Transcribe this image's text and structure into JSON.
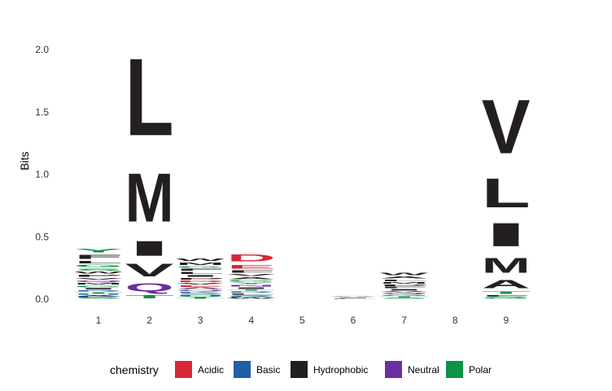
{
  "chart_data": {
    "type": "sequence-logo",
    "ylabel": "Bits",
    "ylim": [
      0,
      2.2
    ],
    "yticks": [
      "0.0",
      "0.5",
      "1.0",
      "1.5",
      "2.0"
    ],
    "positions": [
      "1",
      "2",
      "3",
      "4",
      "5",
      "6",
      "7",
      "8",
      "9"
    ],
    "legend": {
      "title": "chemistry",
      "placement": "bottom",
      "items": [
        {
          "label": "Acidic",
          "color": "#d62839"
        },
        {
          "label": "Basic",
          "color": "#1f5fa5"
        },
        {
          "label": "Hydrophobic",
          "color": "#231f20"
        },
        {
          "label": "Neutral",
          "color": "#6a2fa0"
        },
        {
          "label": "Polar",
          "color": "#0f9147"
        }
      ]
    },
    "color_map": {
      "Acidic": "#d62839",
      "Basic": "#1f5fa5",
      "Hydrophobic": "#231f20",
      "Neutral": "#6a2fa0",
      "Polar": "#0f9147"
    },
    "stacks": [
      {
        "position": "1",
        "letters": [
          {
            "aa": "S",
            "bits": 0.01,
            "chem": "Polar"
          },
          {
            "aa": "K",
            "bits": 0.01,
            "chem": "Basic"
          },
          {
            "aa": "A",
            "bits": 0.012,
            "chem": "Hydrophobic"
          },
          {
            "aa": "H",
            "bits": 0.012,
            "chem": "Basic"
          },
          {
            "aa": "T",
            "bits": 0.015,
            "chem": "Polar"
          },
          {
            "aa": "R",
            "bits": 0.015,
            "chem": "Basic"
          },
          {
            "aa": "I",
            "bits": 0.018,
            "chem": "Hydrophobic"
          },
          {
            "aa": "G",
            "bits": 0.02,
            "chem": "Polar"
          },
          {
            "aa": "M",
            "bits": 0.02,
            "chem": "Hydrophobic"
          },
          {
            "aa": "Q",
            "bits": 0.02,
            "chem": "Neutral"
          },
          {
            "aa": "V",
            "bits": 0.022,
            "chem": "Hydrophobic"
          },
          {
            "aa": "P",
            "bits": 0.025,
            "chem": "Hydrophobic"
          },
          {
            "aa": "W",
            "bits": 0.025,
            "chem": "Hydrophobic"
          },
          {
            "aa": "S",
            "bits": 0.028,
            "chem": "Polar"
          },
          {
            "aa": "G",
            "bits": 0.03,
            "chem": "Polar"
          },
          {
            "aa": "L",
            "bits": 0.03,
            "chem": "Hydrophobic"
          },
          {
            "aa": "F",
            "bits": 0.055,
            "chem": "Hydrophobic"
          },
          {
            "aa": "Y",
            "bits": 0.045,
            "chem": "Polar"
          }
        ]
      },
      {
        "position": "2",
        "letters": [
          {
            "aa": "T",
            "bits": 0.04,
            "chem": "Polar"
          },
          {
            "aa": "Q",
            "bits": 0.11,
            "chem": "Neutral"
          },
          {
            "aa": "V",
            "bits": 0.16,
            "chem": "Hydrophobic"
          },
          {
            "aa": "I",
            "bits": 0.19,
            "chem": "Hydrophobic"
          },
          {
            "aa": "M",
            "bits": 0.62,
            "chem": "Hydrophobic"
          },
          {
            "aa": "L",
            "bits": 0.99,
            "chem": "Hydrophobic"
          }
        ]
      },
      {
        "position": "3",
        "letters": [
          {
            "aa": "T",
            "bits": 0.01,
            "chem": "Polar"
          },
          {
            "aa": "Y",
            "bits": 0.01,
            "chem": "Polar"
          },
          {
            "aa": "H",
            "bits": 0.012,
            "chem": "Basic"
          },
          {
            "aa": "S",
            "bits": 0.015,
            "chem": "Polar"
          },
          {
            "aa": "K",
            "bits": 0.015,
            "chem": "Basic"
          },
          {
            "aa": "Q",
            "bits": 0.015,
            "chem": "Neutral"
          },
          {
            "aa": "A",
            "bits": 0.018,
            "chem": "Hydrophobic"
          },
          {
            "aa": "E",
            "bits": 0.018,
            "chem": "Acidic"
          },
          {
            "aa": "V",
            "bits": 0.02,
            "chem": "Hydrophobic"
          },
          {
            "aa": "D",
            "bits": 0.02,
            "chem": "Acidic"
          },
          {
            "aa": "P",
            "bits": 0.022,
            "chem": "Hydrophobic"
          },
          {
            "aa": "I",
            "bits": 0.022,
            "chem": "Hydrophobic"
          },
          {
            "aa": "L",
            "bits": 0.025,
            "chem": "Hydrophobic"
          },
          {
            "aa": "F",
            "bits": 0.025,
            "chem": "Hydrophobic"
          },
          {
            "aa": "G",
            "bits": 0.022,
            "chem": "Polar"
          },
          {
            "aa": "M",
            "bits": 0.03,
            "chem": "Hydrophobic"
          },
          {
            "aa": "W",
            "bits": 0.035,
            "chem": "Hydrophobic"
          }
        ]
      },
      {
        "position": "4",
        "letters": [
          {
            "aa": "W",
            "bits": 0.01,
            "chem": "Hydrophobic"
          },
          {
            "aa": "K",
            "bits": 0.012,
            "chem": "Basic"
          },
          {
            "aa": "S",
            "bits": 0.012,
            "chem": "Polar"
          },
          {
            "aa": "L",
            "bits": 0.015,
            "chem": "Hydrophobic"
          },
          {
            "aa": "R",
            "bits": 0.015,
            "chem": "Basic"
          },
          {
            "aa": "T",
            "bits": 0.015,
            "chem": "Polar"
          },
          {
            "aa": "I",
            "bits": 0.018,
            "chem": "Hydrophobic"
          },
          {
            "aa": "N",
            "bits": 0.018,
            "chem": "Neutral"
          },
          {
            "aa": "Y",
            "bits": 0.02,
            "chem": "Polar"
          },
          {
            "aa": "G",
            "bits": 0.02,
            "chem": "Polar"
          },
          {
            "aa": "A",
            "bits": 0.025,
            "chem": "Hydrophobic"
          },
          {
            "aa": "V",
            "bits": 0.025,
            "chem": "Hydrophobic"
          },
          {
            "aa": "F",
            "bits": 0.03,
            "chem": "Hydrophobic"
          },
          {
            "aa": "E",
            "bits": 0.05,
            "chem": "Acidic"
          },
          {
            "aa": "D",
            "bits": 0.085,
            "chem": "Acidic"
          }
        ]
      },
      {
        "position": "5",
        "letters": []
      },
      {
        "position": "6",
        "letters": [
          {
            "aa": "L",
            "bits": 0.005,
            "chem": "Hydrophobic"
          },
          {
            "aa": "I",
            "bits": 0.006,
            "chem": "Hydrophobic"
          },
          {
            "aa": "A",
            "bits": 0.006,
            "chem": "Hydrophobic"
          },
          {
            "aa": "V",
            "bits": 0.006,
            "chem": "Hydrophobic"
          }
        ]
      },
      {
        "position": "7",
        "letters": [
          {
            "aa": "S",
            "bits": 0.012,
            "chem": "Polar"
          },
          {
            "aa": "T",
            "bits": 0.012,
            "chem": "Polar"
          },
          {
            "aa": "G",
            "bits": 0.015,
            "chem": "Polar"
          },
          {
            "aa": "Q",
            "bits": 0.012,
            "chem": "Neutral"
          },
          {
            "aa": "V",
            "bits": 0.015,
            "chem": "Hydrophobic"
          },
          {
            "aa": "I",
            "bits": 0.018,
            "chem": "Hydrophobic"
          },
          {
            "aa": "F",
            "bits": 0.018,
            "chem": "Hydrophobic"
          },
          {
            "aa": "P",
            "bits": 0.018,
            "chem": "Hydrophobic"
          },
          {
            "aa": "M",
            "bits": 0.02,
            "chem": "Hydrophobic"
          },
          {
            "aa": "L",
            "bits": 0.02,
            "chem": "Hydrophobic"
          },
          {
            "aa": "A",
            "bits": 0.025,
            "chem": "Hydrophobic"
          },
          {
            "aa": "W",
            "bits": 0.03,
            "chem": "Hydrophobic"
          }
        ]
      },
      {
        "position": "8",
        "letters": []
      },
      {
        "position": "9",
        "letters": [
          {
            "aa": "G",
            "bits": 0.01,
            "chem": "Polar"
          },
          {
            "aa": "S",
            "bits": 0.01,
            "chem": "Polar"
          },
          {
            "aa": "F",
            "bits": 0.015,
            "chem": "Hydrophobic"
          },
          {
            "aa": "T",
            "bits": 0.03,
            "chem": "Polar"
          },
          {
            "aa": "A",
            "bits": 0.11,
            "chem": "Hydrophobic"
          },
          {
            "aa": "M",
            "bits": 0.19,
            "chem": "Hydrophobic"
          },
          {
            "aa": "I",
            "bits": 0.3,
            "chem": "Hydrophobic"
          },
          {
            "aa": "L",
            "bits": 0.37,
            "chem": "Hydrophobic"
          },
          {
            "aa": "V",
            "bits": 0.69,
            "chem": "Hydrophobic"
          }
        ]
      }
    ]
  }
}
